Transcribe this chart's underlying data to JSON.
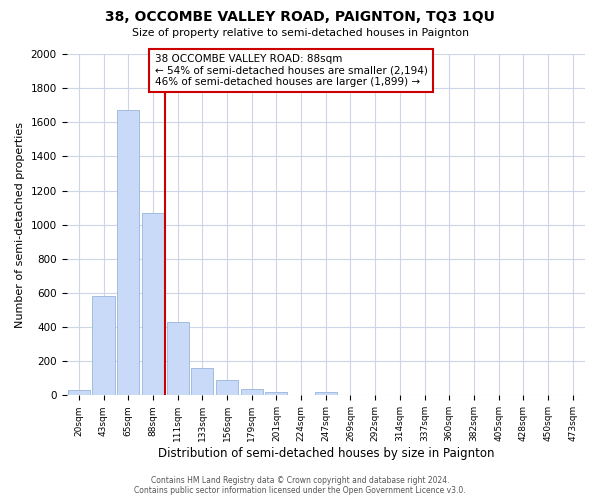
{
  "title": "38, OCCOMBE VALLEY ROAD, PAIGNTON, TQ3 1QU",
  "subtitle": "Size of property relative to semi-detached houses in Paignton",
  "xlabel": "Distribution of semi-detached houses by size in Paignton",
  "ylabel": "Number of semi-detached properties",
  "bin_labels": [
    "20sqm",
    "43sqm",
    "65sqm",
    "88sqm",
    "111sqm",
    "133sqm",
    "156sqm",
    "179sqm",
    "201sqm",
    "224sqm",
    "247sqm",
    "269sqm",
    "292sqm",
    "314sqm",
    "337sqm",
    "360sqm",
    "382sqm",
    "405sqm",
    "428sqm",
    "450sqm",
    "473sqm"
  ],
  "bin_values": [
    30,
    580,
    1670,
    1070,
    430,
    160,
    90,
    40,
    20,
    0,
    20,
    0,
    0,
    0,
    0,
    0,
    0,
    0,
    0,
    0,
    0
  ],
  "property_line_bin": 3,
  "bar_color": "#c9daf8",
  "bar_edge_color": "#9ab5d9",
  "property_line_color": "#cc0000",
  "annotation_text": "38 OCCOMBE VALLEY ROAD: 88sqm\n← 54% of semi-detached houses are smaller (2,194)\n46% of semi-detached houses are larger (1,899) →",
  "ylim": [
    0,
    2000
  ],
  "yticks": [
    0,
    200,
    400,
    600,
    800,
    1000,
    1200,
    1400,
    1600,
    1800,
    2000
  ],
  "footer": "Contains HM Land Registry data © Crown copyright and database right 2024.\nContains public sector information licensed under the Open Government Licence v3.0.",
  "bg_color": "#ffffff",
  "grid_color": "#ccd6e8"
}
